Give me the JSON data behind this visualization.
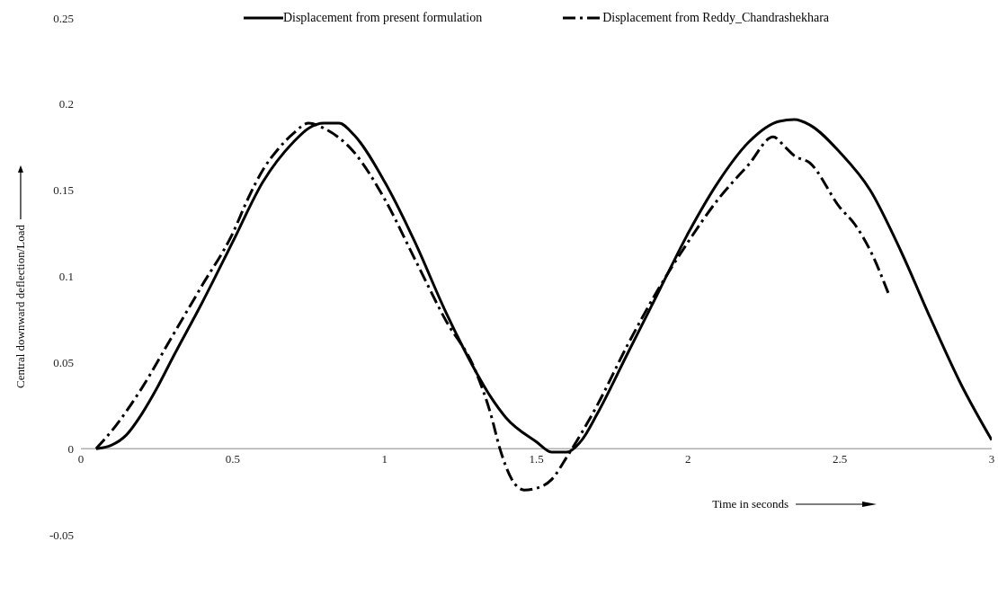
{
  "chart_data": {
    "type": "line",
    "xlabel": "Time in seconds",
    "ylabel": "Central downward deflection/Load",
    "xlim": [
      0,
      3
    ],
    "xticks": [
      0,
      0.5,
      1,
      1.5,
      2,
      2.5,
      3
    ],
    "ylim": [
      -0.05,
      0.25
    ],
    "yticks": [
      -0.05,
      0,
      0.05,
      0.1,
      0.15,
      0.2,
      0.25
    ],
    "legend": "top",
    "marker": "none",
    "grid": false,
    "series": [
      {
        "name": "Displacement from present formulation",
        "color": "#000000",
        "line_style": "solid",
        "x": [
          0.05,
          0.1,
          0.15,
          0.2,
          0.25,
          0.3,
          0.4,
          0.5,
          0.6,
          0.7,
          0.75,
          0.8,
          0.85,
          0.9,
          1.0,
          1.1,
          1.2,
          1.3,
          1.35,
          1.4,
          1.5,
          1.55,
          1.6,
          1.65,
          1.7,
          1.8,
          1.9,
          2.0,
          2.1,
          2.2,
          2.3,
          2.35,
          2.4,
          2.5,
          2.6,
          2.7,
          2.8,
          2.9,
          3.0
        ],
        "values": [
          0,
          0.002,
          0.008,
          0.02,
          0.035,
          0.052,
          0.085,
          0.12,
          0.155,
          0.178,
          0.186,
          0.189,
          0.189,
          0.182,
          0.155,
          0.12,
          0.08,
          0.045,
          0.03,
          0.018,
          0.004,
          -0.002,
          -0.002,
          0.005,
          0.02,
          0.055,
          0.09,
          0.125,
          0.155,
          0.178,
          0.19,
          0.191,
          0.188,
          0.172,
          0.15,
          0.115,
          0.075,
          0.037,
          0.005
        ]
      },
      {
        "name": "Displacement from Reddy_Chandrashekhara",
        "color": "#000000",
        "line_style": "dashed",
        "x": [
          0.05,
          0.1,
          0.2,
          0.3,
          0.4,
          0.5,
          0.55,
          0.6,
          0.65,
          0.7,
          0.75,
          0.8,
          0.9,
          1.0,
          1.1,
          1.2,
          1.3,
          1.35,
          1.38,
          1.42,
          1.46,
          1.5,
          1.55,
          1.6,
          1.7,
          1.8,
          1.9,
          2.0,
          2.1,
          2.2,
          2.28,
          2.32,
          2.35,
          2.4,
          2.5,
          2.55,
          2.6,
          2.66
        ],
        "values": [
          0,
          0.01,
          0.035,
          0.065,
          0.095,
          0.125,
          0.145,
          0.162,
          0.174,
          0.183,
          0.189,
          0.186,
          0.172,
          0.145,
          0.11,
          0.075,
          0.045,
          0.02,
          0,
          -0.018,
          -0.024,
          -0.023,
          -0.018,
          -0.005,
          0.025,
          0.06,
          0.092,
          0.12,
          0.145,
          0.165,
          0.181,
          0.175,
          0.17,
          0.166,
          0.14,
          0.13,
          0.115,
          0.09
        ]
      }
    ]
  }
}
